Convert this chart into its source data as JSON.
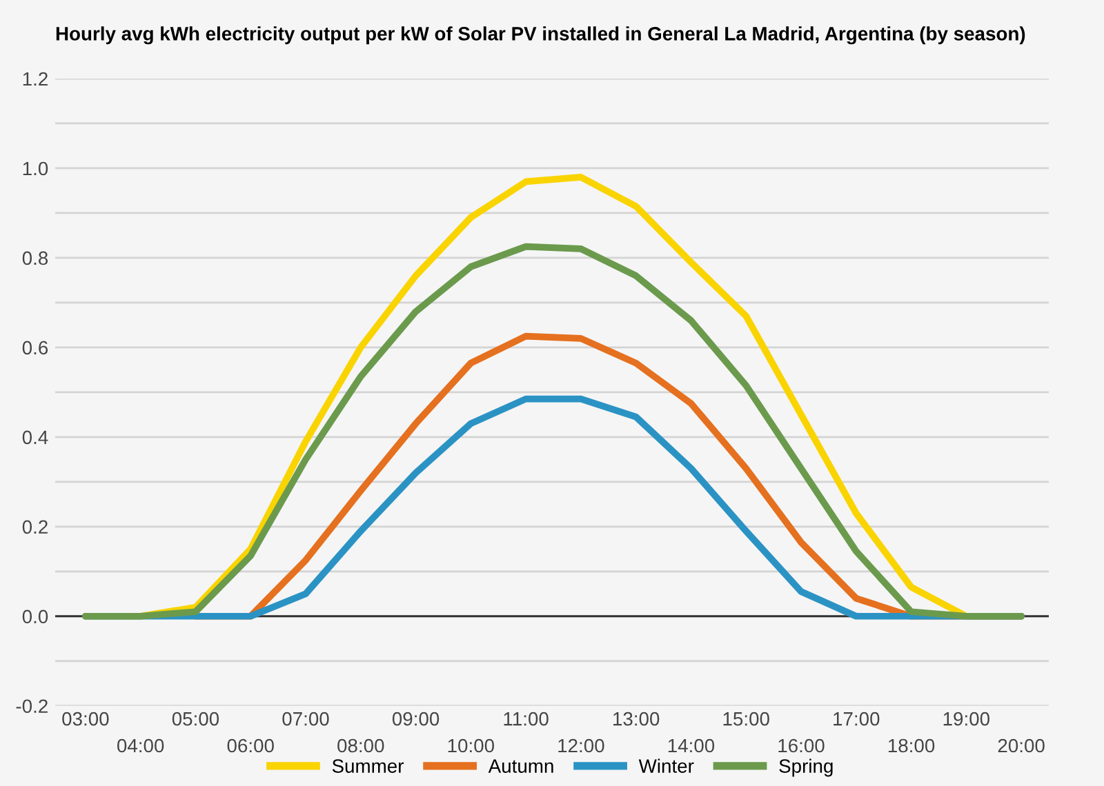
{
  "chart_data": {
    "type": "line",
    "title": "Hourly avg kWh electricity output per kW of Solar PV installed in General La Madrid, Argentina (by season)",
    "categories": [
      "03:00",
      "04:00",
      "05:00",
      "06:00",
      "07:00",
      "08:00",
      "09:00",
      "10:00",
      "11:00",
      "12:00",
      "13:00",
      "14:00",
      "15:00",
      "16:00",
      "17:00",
      "18:00",
      "19:00",
      "20:00"
    ],
    "series": [
      {
        "name": "Summer",
        "color": "#f9d400",
        "values": [
          0,
          0,
          0.02,
          0.15,
          0.39,
          0.6,
          0.76,
          0.89,
          0.97,
          0.98,
          0.915,
          0.79,
          0.67,
          0.45,
          0.23,
          0.065,
          0,
          0
        ]
      },
      {
        "name": "Autumn",
        "color": "#e5701f",
        "values": [
          null,
          null,
          0,
          0,
          0.125,
          0.28,
          0.43,
          0.565,
          0.625,
          0.62,
          0.565,
          0.475,
          0.33,
          0.165,
          0.04,
          0,
          0,
          0
        ]
      },
      {
        "name": "Winter",
        "color": "#2b93c4",
        "values": [
          0,
          0,
          0,
          0,
          0.05,
          0.19,
          0.32,
          0.43,
          0.485,
          0.485,
          0.445,
          0.33,
          0.19,
          0.055,
          0,
          0,
          0,
          0
        ]
      },
      {
        "name": "Spring",
        "color": "#6b9a4d",
        "values": [
          0,
          0,
          0.01,
          0.135,
          0.35,
          0.535,
          0.68,
          0.78,
          0.825,
          0.82,
          0.76,
          0.66,
          0.515,
          0.33,
          0.145,
          0.01,
          0,
          0
        ]
      }
    ],
    "ylim": [
      -0.2,
      1.2
    ],
    "yticks": [
      {
        "value": -0.2,
        "label": "-0.2"
      },
      {
        "value": -0.1,
        "label": null
      },
      {
        "value": 0,
        "label": "0.0"
      },
      {
        "value": 0.1,
        "label": null
      },
      {
        "value": 0.2,
        "label": "0.2"
      },
      {
        "value": 0.3,
        "label": null
      },
      {
        "value": 0.4,
        "label": "0.4"
      },
      {
        "value": 0.5,
        "label": null
      },
      {
        "value": 0.6,
        "label": "0.6"
      },
      {
        "value": 0.7,
        "label": null
      },
      {
        "value": 0.8,
        "label": "0.8"
      },
      {
        "value": 0.9,
        "label": null
      },
      {
        "value": 1,
        "label": "1.0"
      },
      {
        "value": 1.1,
        "label": null
      },
      {
        "value": 1.2,
        "label": "1.2"
      }
    ],
    "ref_lines": [
      {
        "axis": "y",
        "value": 0,
        "color": "#333333"
      }
    ],
    "grid": "y",
    "legend": "bottom",
    "marker": "none",
    "line_style": "solid"
  }
}
